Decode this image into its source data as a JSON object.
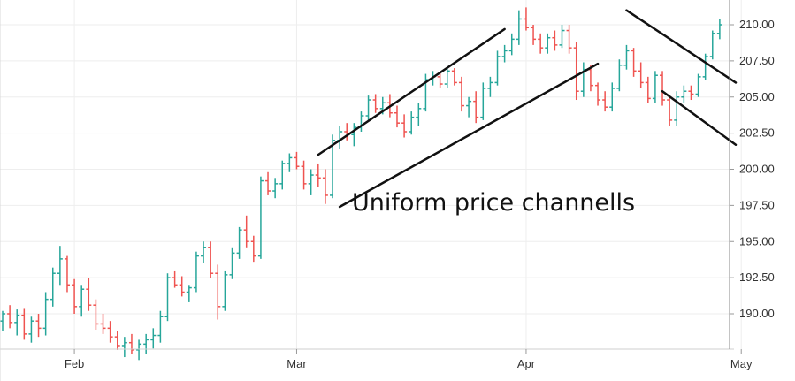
{
  "chart_data": {
    "type": "ohlc",
    "title": "",
    "annotation": "Uniform price channells",
    "x_axis": {
      "ticks": [
        "Feb",
        "Mar",
        "Apr",
        "May"
      ]
    },
    "y_axis": {
      "ticks": [
        "190.00",
        "192.50",
        "195.00",
        "197.50",
        "200.00",
        "202.50",
        "205.00",
        "207.50",
        "210.00"
      ],
      "range": [
        188.5,
        211.0
      ],
      "position": "right"
    },
    "grid": true,
    "colors": {
      "up": "#26a69a",
      "down": "#ef5350",
      "line": "#111111",
      "grid": "#eeeeee"
    },
    "x_range": [
      0,
      101
    ],
    "x_tick_positions": [
      10,
      41,
      73,
      103
    ],
    "bars": [
      [
        0,
        189.5,
        190.2,
        188.8,
        190.0
      ],
      [
        1,
        190.0,
        190.6,
        189.0,
        189.4
      ],
      [
        2,
        189.4,
        190.3,
        188.5,
        189.9
      ],
      [
        3,
        189.9,
        190.4,
        188.2,
        188.6
      ],
      [
        4,
        188.6,
        189.8,
        188.0,
        189.5
      ],
      [
        5,
        189.5,
        190.0,
        188.4,
        189.0
      ],
      [
        6,
        189.0,
        191.5,
        188.5,
        191.0
      ],
      [
        7,
        191.0,
        193.2,
        190.5,
        192.8
      ],
      [
        8,
        192.8,
        194.7,
        192.0,
        193.8
      ],
      [
        9,
        193.8,
        194.0,
        191.5,
        192.0
      ],
      [
        10,
        192.0,
        192.4,
        190.0,
        190.5
      ],
      [
        11,
        190.5,
        192.0,
        189.8,
        191.7
      ],
      [
        12,
        191.7,
        192.5,
        190.2,
        190.6
      ],
      [
        13,
        190.6,
        191.0,
        188.9,
        189.3
      ],
      [
        14,
        189.3,
        190.0,
        188.6,
        189.0
      ],
      [
        15,
        189.0,
        189.5,
        188.0,
        188.4
      ],
      [
        16,
        188.4,
        188.8,
        187.5,
        187.8
      ],
      [
        17,
        187.8,
        188.4,
        187.0,
        188.0
      ],
      [
        18,
        188.0,
        188.6,
        187.2,
        187.5
      ],
      [
        19,
        187.5,
        188.2,
        186.8,
        187.9
      ],
      [
        20,
        187.9,
        188.6,
        187.2,
        188.2
      ],
      [
        21,
        188.2,
        189.0,
        187.6,
        188.5
      ],
      [
        22,
        188.5,
        190.2,
        188.0,
        189.8
      ],
      [
        23,
        189.8,
        192.8,
        189.5,
        192.5
      ],
      [
        24,
        192.5,
        193.0,
        191.8,
        192.0
      ],
      [
        25,
        192.0,
        192.6,
        191.2,
        191.5
      ],
      [
        26,
        191.5,
        192.0,
        190.8,
        191.8
      ],
      [
        27,
        191.8,
        194.3,
        191.5,
        194.0
      ],
      [
        28,
        194.0,
        195.0,
        193.5,
        194.6
      ],
      [
        29,
        194.6,
        195.0,
        192.5,
        192.8
      ],
      [
        30,
        192.8,
        193.4,
        189.6,
        190.5
      ],
      [
        31,
        190.5,
        193.0,
        190.2,
        192.7
      ],
      [
        32,
        192.7,
        194.6,
        192.4,
        194.2
      ],
      [
        33,
        194.2,
        196.0,
        193.8,
        195.8
      ],
      [
        34,
        195.8,
        196.8,
        194.6,
        195.0
      ],
      [
        35,
        195.0,
        195.4,
        193.6,
        194.0
      ],
      [
        36,
        194.0,
        199.5,
        193.8,
        199.2
      ],
      [
        37,
        199.2,
        199.8,
        198.2,
        198.5
      ],
      [
        38,
        198.5,
        199.4,
        198.0,
        199.0
      ],
      [
        39,
        199.0,
        200.6,
        198.6,
        200.4
      ],
      [
        40,
        200.4,
        201.1,
        199.8,
        200.8
      ],
      [
        41,
        200.8,
        201.2,
        200.0,
        200.2
      ],
      [
        42,
        200.2,
        200.6,
        198.6,
        199.0
      ],
      [
        43,
        199.0,
        200.0,
        198.2,
        199.6
      ],
      [
        44,
        199.6,
        200.4,
        198.8,
        199.4
      ],
      [
        45,
        199.4,
        200.0,
        197.6,
        198.2
      ],
      [
        46,
        198.2,
        202.4,
        198.0,
        202.0
      ],
      [
        47,
        202.0,
        203.0,
        201.4,
        202.6
      ],
      [
        48,
        202.6,
        203.2,
        202.0,
        202.4
      ],
      [
        49,
        202.4,
        203.2,
        201.6,
        202.9
      ],
      [
        50,
        202.9,
        204.0,
        202.6,
        203.7
      ],
      [
        51,
        203.7,
        205.1,
        203.4,
        204.8
      ],
      [
        52,
        204.8,
        205.2,
        203.9,
        204.2
      ],
      [
        53,
        204.2,
        205.0,
        203.8,
        204.6
      ],
      [
        54,
        204.6,
        205.2,
        203.6,
        203.9
      ],
      [
        55,
        203.9,
        204.4,
        202.9,
        203.2
      ],
      [
        56,
        203.2,
        203.8,
        202.2,
        202.6
      ],
      [
        57,
        202.6,
        204.0,
        202.4,
        203.6
      ],
      [
        58,
        203.6,
        204.6,
        203.0,
        204.2
      ],
      [
        59,
        204.2,
        206.6,
        204.0,
        206.2
      ],
      [
        60,
        206.2,
        206.8,
        205.8,
        206.4
      ],
      [
        61,
        206.4,
        206.7,
        205.6,
        205.9
      ],
      [
        62,
        205.9,
        207.1,
        205.6,
        206.8
      ],
      [
        63,
        206.8,
        207.0,
        205.8,
        206.0
      ],
      [
        64,
        206.0,
        206.4,
        204.0,
        204.4
      ],
      [
        65,
        204.4,
        205.0,
        203.6,
        204.7
      ],
      [
        66,
        204.7,
        205.4,
        203.2,
        203.6
      ],
      [
        67,
        203.6,
        206.0,
        203.4,
        205.6
      ],
      [
        68,
        205.6,
        206.4,
        205.0,
        206.0
      ],
      [
        69,
        206.0,
        208.2,
        205.8,
        207.8
      ],
      [
        70,
        207.8,
        208.6,
        207.4,
        208.2
      ],
      [
        71,
        208.2,
        209.4,
        207.9,
        209.0
      ],
      [
        72,
        209.0,
        211.0,
        208.6,
        210.4
      ],
      [
        73,
        210.4,
        211.2,
        209.6,
        209.8
      ],
      [
        74,
        209.8,
        210.0,
        208.6,
        209.0
      ],
      [
        75,
        209.0,
        209.4,
        208.0,
        208.4
      ],
      [
        76,
        208.4,
        209.4,
        208.0,
        209.1
      ],
      [
        77,
        209.1,
        209.6,
        208.2,
        208.6
      ],
      [
        78,
        208.6,
        210.0,
        208.4,
        209.6
      ],
      [
        79,
        209.6,
        210.0,
        208.0,
        208.4
      ],
      [
        80,
        208.4,
        208.8,
        204.8,
        205.4
      ],
      [
        81,
        205.4,
        207.4,
        205.0,
        206.9
      ],
      [
        82,
        206.9,
        207.2,
        205.4,
        205.8
      ],
      [
        83,
        205.8,
        206.0,
        204.4,
        204.8
      ],
      [
        84,
        204.8,
        205.4,
        204.0,
        204.3
      ],
      [
        85,
        204.3,
        206.0,
        204.0,
        205.6
      ],
      [
        86,
        205.6,
        207.6,
        205.4,
        207.2
      ],
      [
        87,
        207.2,
        208.6,
        206.9,
        208.2
      ],
      [
        88,
        208.2,
        208.4,
        206.4,
        206.8
      ],
      [
        89,
        206.8,
        207.4,
        205.6,
        206.0
      ],
      [
        90,
        206.0,
        206.4,
        204.6,
        204.9
      ],
      [
        91,
        204.9,
        206.8,
        204.6,
        206.5
      ],
      [
        92,
        206.5,
        206.8,
        204.4,
        204.8
      ],
      [
        93,
        204.8,
        205.0,
        203.0,
        203.4
      ],
      [
        94,
        203.4,
        205.4,
        203.0,
        205.0
      ],
      [
        95,
        205.0,
        205.8,
        204.6,
        205.4
      ],
      [
        96,
        205.4,
        205.8,
        204.8,
        205.2
      ],
      [
        97,
        205.2,
        206.6,
        205.0,
        206.4
      ],
      [
        98,
        206.4,
        208.0,
        206.2,
        207.8
      ],
      [
        99,
        207.8,
        209.6,
        207.6,
        209.4
      ],
      [
        100,
        209.4,
        210.4,
        209.0,
        210.0
      ]
    ],
    "trendlines": [
      {
        "from": [
          44,
          201.0
        ],
        "to": [
          70,
          209.7
        ]
      },
      {
        "from": [
          47,
          197.4
        ],
        "to": [
          83,
          207.3
        ]
      },
      {
        "from": [
          87,
          211.0
        ],
        "to": [
          121,
          206.0
        ]
      },
      {
        "from": [
          92,
          205.4
        ],
        "to": [
          121,
          201.7
        ]
      }
    ]
  }
}
